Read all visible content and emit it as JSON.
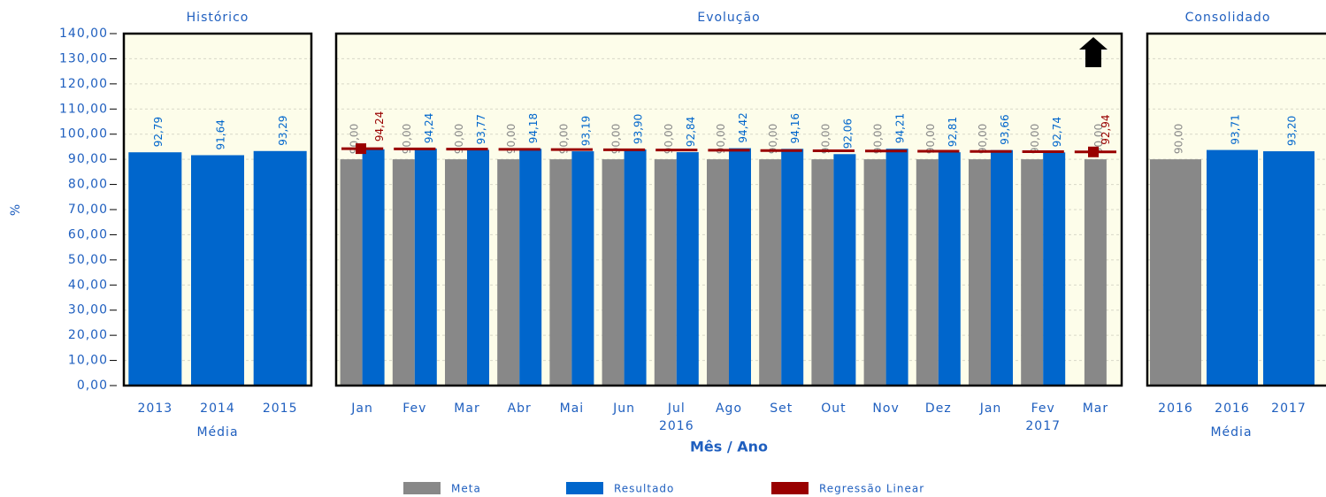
{
  "chart_data": {
    "type": "bar",
    "ylabel": "%",
    "ylim": [
      0,
      140
    ],
    "yticks": [
      {
        "value": 0,
        "label": "0,00"
      },
      {
        "value": 10,
        "label": "10,00"
      },
      {
        "value": 20,
        "label": "20,00"
      },
      {
        "value": 30,
        "label": "30,00"
      },
      {
        "value": 40,
        "label": "40,00"
      },
      {
        "value": 50,
        "label": "50,00"
      },
      {
        "value": 60,
        "label": "60,00"
      },
      {
        "value": 70,
        "label": "70,00"
      },
      {
        "value": 80,
        "label": "80,00"
      },
      {
        "value": 90,
        "label": "90,00"
      },
      {
        "value": 100,
        "label": "100,00"
      },
      {
        "value": 110,
        "label": "110,00"
      },
      {
        "value": 120,
        "label": "120,00"
      },
      {
        "value": 130,
        "label": "130,00"
      },
      {
        "value": 140,
        "label": "140,00"
      }
    ],
    "grid": true,
    "legend": {
      "meta": {
        "name": "Meta",
        "color": "#888888"
      },
      "resultado": {
        "name": "Resultado",
        "color": "#0066cc"
      },
      "regressao": {
        "name": "Regressão Linear",
        "color": "#990000"
      }
    },
    "panels": [
      {
        "title": "Histórico",
        "xlabel": "Média",
        "categories": [
          "2013",
          "2014",
          "2015"
        ],
        "series": {
          "resultado": {
            "values": [
              92.79,
              91.64,
              93.29
            ],
            "value_labels": [
              "92,79",
              "91,64",
              "93,29"
            ]
          }
        }
      },
      {
        "title": "Evolução",
        "xlabel": "Mês / Ano",
        "categories": [
          "Jan",
          "Fev",
          "Mar",
          "Abr",
          "Mai",
          "Jun",
          "Jul",
          "Ago",
          "Set",
          "Out",
          "Nov",
          "Dez",
          "Jan",
          "Fev",
          "Mar"
        ],
        "years": [
          null,
          null,
          null,
          null,
          null,
          null,
          "2016",
          null,
          null,
          null,
          null,
          null,
          null,
          "2017",
          null
        ],
        "series": {
          "meta": {
            "values": [
              90,
              90,
              90,
              90,
              90,
              90,
              90,
              90,
              90,
              90,
              90,
              90,
              90,
              90,
              90
            ],
            "value_labels": [
              "90,00",
              "90,00",
              "90,00",
              "90,00",
              "90,00",
              "90,00",
              "90,00",
              "90,00",
              "90,00",
              "90,00",
              "90,00",
              "90,00",
              "90,00",
              "90,00",
              "90,00"
            ]
          },
          "resultado": {
            "values": [
              94.0,
              94.24,
              93.77,
              94.18,
              93.19,
              93.9,
              92.84,
              94.42,
              94.16,
              92.06,
              94.21,
              92.81,
              93.66,
              92.74,
              null
            ],
            "value_labels": [
              null,
              "94,24",
              "93,77",
              "94,18",
              "93,19",
              "93,90",
              "92,84",
              "94,42",
              "94,16",
              "92,06",
              "94,21",
              "92,81",
              "93,66",
              "92,74",
              null
            ]
          },
          "regressao": {
            "values": [
              94.24,
              94.15,
              94.05,
              93.96,
              93.87,
              93.78,
              93.68,
              93.59,
              93.5,
              93.4,
              93.31,
              93.22,
              93.13,
              93.03,
              92.94
            ],
            "value_labels": [
              "94,24",
              null,
              null,
              null,
              null,
              null,
              null,
              null,
              null,
              null,
              null,
              null,
              null,
              null,
              "92,94"
            ]
          }
        }
      },
      {
        "title": "Consolidado",
        "xlabel": "Média",
        "categories": [
          "2016",
          "2016",
          "2017"
        ],
        "series": {
          "meta": {
            "values": [
              90,
              null,
              null
            ],
            "value_labels": [
              "90,00",
              null,
              null
            ]
          },
          "resultado": {
            "values": [
              null,
              93.71,
              93.2
            ],
            "value_labels": [
              null,
              "93,71",
              "93,20"
            ]
          }
        }
      }
    ]
  }
}
